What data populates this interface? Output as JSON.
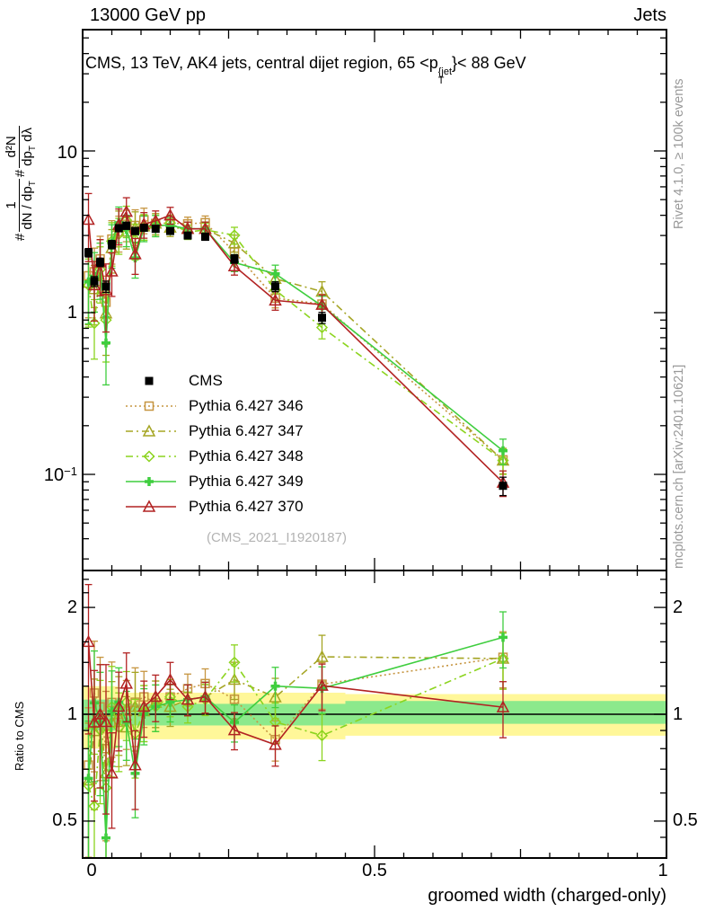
{
  "header": {
    "left": "13000 GeV pp",
    "right": "Jets"
  },
  "panel_title": {
    "part1": "CMS, 13 TeV, AK4 jets, central dijet region, 65 <p",
    "sup": "{jet",
    "sub": "T",
    "part2": "}< 88 GeV"
  },
  "y_axis_formula": {
    "hash1": "#",
    "frac1_num": "1",
    "frac1_den": "dN / dp",
    "frac1_den_sub": "T",
    "hash2": "#",
    "frac2_num": "d²N",
    "frac2_den": "dp",
    "frac2_den_sub": "T",
    "frac2_den_tail": " dλ"
  },
  "right_margin": {
    "top": "Rivet 4.1.0, ≥ 100k events",
    "bottom": "mcplots.cern.ch [arXiv:2401.10621]"
  },
  "watermark": "(CMS_2021_I1920187)",
  "ratio_axis_label": "Ratio to CMS",
  "x_axis": {
    "title": "groomed width (charged-only)",
    "tick0": "0",
    "tick05": "0.5",
    "tick1": "1"
  },
  "main_y_ticks": {
    "t10": "10",
    "t1": "1",
    "pow_base": "10",
    "pow_exp": "−1"
  },
  "ratio_y_ticks": {
    "t2": "2",
    "t1": "1",
    "t05": "0.5"
  },
  "chart_data": {
    "type": "line",
    "title": "CMS, 13 TeV, AK4 jets, central dijet region, 65 < pT{jet} < 88 GeV",
    "xlabel": "groomed width (charged-only)",
    "ylabel": "# 1/(dN/dpT) # d²N/(dpT dλ)",
    "ratio_ylabel": "Ratio to CMS",
    "xlim": [
      0,
      1
    ],
    "yscale": "log",
    "ylim_main": [
      0.025,
      56
    ],
    "ylim_ratio": [
      0.39,
      2.54
    ],
    "grid": false,
    "legend_position": "inside-left-middle",
    "x": [
      0.01,
      0.02,
      0.03,
      0.04,
      0.05,
      0.062,
      0.075,
      0.09,
      0.105,
      0.125,
      0.15,
      0.18,
      0.21,
      0.26,
      0.33,
      0.41,
      0.72
    ],
    "series": [
      {
        "name": "CMS",
        "color": "#000000",
        "marker": "square-filled",
        "line": "none",
        "in_ratio": false,
        "values": [
          2.35,
          1.56,
          2.05,
          1.45,
          2.64,
          3.33,
          3.45,
          3.2,
          3.35,
          3.3,
          3.2,
          3.0,
          2.95,
          2.15,
          1.45,
          0.93,
          0.085
        ],
        "err": [
          0.06,
          0.07,
          0.06,
          0.08,
          0.06,
          0.05,
          0.05,
          0.05,
          0.04,
          0.04,
          0.04,
          0.04,
          0.05,
          0.06,
          0.07,
          0.08,
          0.13
        ]
      },
      {
        "name": "Pythia 6.427 346",
        "color": "#c69540",
        "marker": "square-open",
        "line": "dotted",
        "in_ratio": true,
        "values": [
          1.69,
          1.79,
          2.15,
          1.16,
          2.85,
          3.16,
          3.52,
          3.46,
          3.75,
          3.56,
          3.58,
          3.54,
          3.6,
          2.37,
          1.23,
          1.13,
          0.123
        ],
        "err": [
          0.45,
          0.4,
          0.38,
          0.45,
          0.3,
          0.25,
          0.22,
          0.25,
          0.18,
          0.15,
          0.12,
          0.1,
          0.1,
          0.12,
          0.13,
          0.15,
          0.18
        ]
      },
      {
        "name": "Pythia 6.427 347",
        "color": "#a5a524",
        "marker": "triangle-open",
        "line": "dashdot",
        "in_ratio": true,
        "values": [
          1.53,
          1.4,
          2.05,
          0.99,
          2.51,
          3.4,
          3.17,
          3.36,
          3.42,
          3.56,
          3.36,
          3.3,
          3.3,
          2.69,
          1.62,
          1.35,
          0.122
        ],
        "err": [
          0.45,
          0.4,
          0.38,
          0.45,
          0.3,
          0.25,
          0.22,
          0.25,
          0.18,
          0.15,
          0.12,
          0.1,
          0.1,
          0.12,
          0.13,
          0.15,
          0.18
        ]
      },
      {
        "name": "Pythia 6.427 348",
        "color": "#8cd41f",
        "marker": "diamond-open",
        "line": "dashdot",
        "in_ratio": true,
        "values": [
          1.48,
          0.86,
          1.85,
          0.9,
          2.77,
          3.06,
          3.73,
          2.82,
          3.42,
          3.47,
          3.58,
          3.15,
          3.25,
          3.01,
          1.38,
          0.81,
          0.122
        ],
        "err": [
          0.45,
          0.4,
          0.38,
          0.45,
          0.3,
          0.25,
          0.22,
          0.25,
          0.18,
          0.15,
          0.12,
          0.1,
          0.1,
          0.12,
          0.13,
          0.15,
          0.18
        ]
      },
      {
        "name": "Pythia 6.427 349",
        "color": "#3fce3f",
        "marker": "plus-filled",
        "line": "solid",
        "in_ratio": true,
        "values": [
          1.55,
          1.68,
          1.95,
          0.65,
          2.69,
          3.6,
          3.28,
          2.18,
          3.35,
          3.47,
          3.46,
          3.3,
          3.3,
          2.04,
          1.74,
          1.1,
          0.14
        ],
        "err": [
          0.45,
          0.4,
          0.38,
          0.45,
          0.3,
          0.25,
          0.22,
          0.25,
          0.18,
          0.15,
          0.12,
          0.1,
          0.1,
          0.12,
          0.13,
          0.15,
          0.18
        ]
      },
      {
        "name": "Pythia 6.427 370",
        "color": "#b22222",
        "marker": "triangle-open",
        "line": "solid",
        "in_ratio": true,
        "values": [
          3.76,
          1.48,
          2.05,
          1.38,
          1.8,
          3.5,
          4.21,
          2.3,
          3.52,
          3.7,
          4.0,
          3.3,
          3.3,
          1.94,
          1.19,
          1.12,
          0.089
        ],
        "err": [
          0.45,
          0.4,
          0.38,
          0.45,
          0.3,
          0.25,
          0.22,
          0.25,
          0.18,
          0.15,
          0.12,
          0.1,
          0.1,
          0.12,
          0.13,
          0.15,
          0.18
        ]
      }
    ],
    "ratio_bands": {
      "yellow_color": "#fff799",
      "green_color": "#8ce98c",
      "yellow": [
        {
          "x0": 0.0,
          "x1": 0.06,
          "lo": 0.8,
          "hi": 1.2
        },
        {
          "x0": 0.06,
          "x1": 0.45,
          "lo": 0.85,
          "hi": 1.15
        },
        {
          "x0": 0.45,
          "x1": 1.0,
          "lo": 0.87,
          "hi": 1.14
        }
      ],
      "green": [
        {
          "x0": 0.0,
          "x1": 0.06,
          "lo": 0.9,
          "hi": 1.1
        },
        {
          "x0": 0.06,
          "x1": 0.45,
          "lo": 0.93,
          "hi": 1.07
        },
        {
          "x0": 0.45,
          "x1": 1.0,
          "lo": 0.94,
          "hi": 1.09
        }
      ],
      "reference_line": 1.0
    }
  }
}
